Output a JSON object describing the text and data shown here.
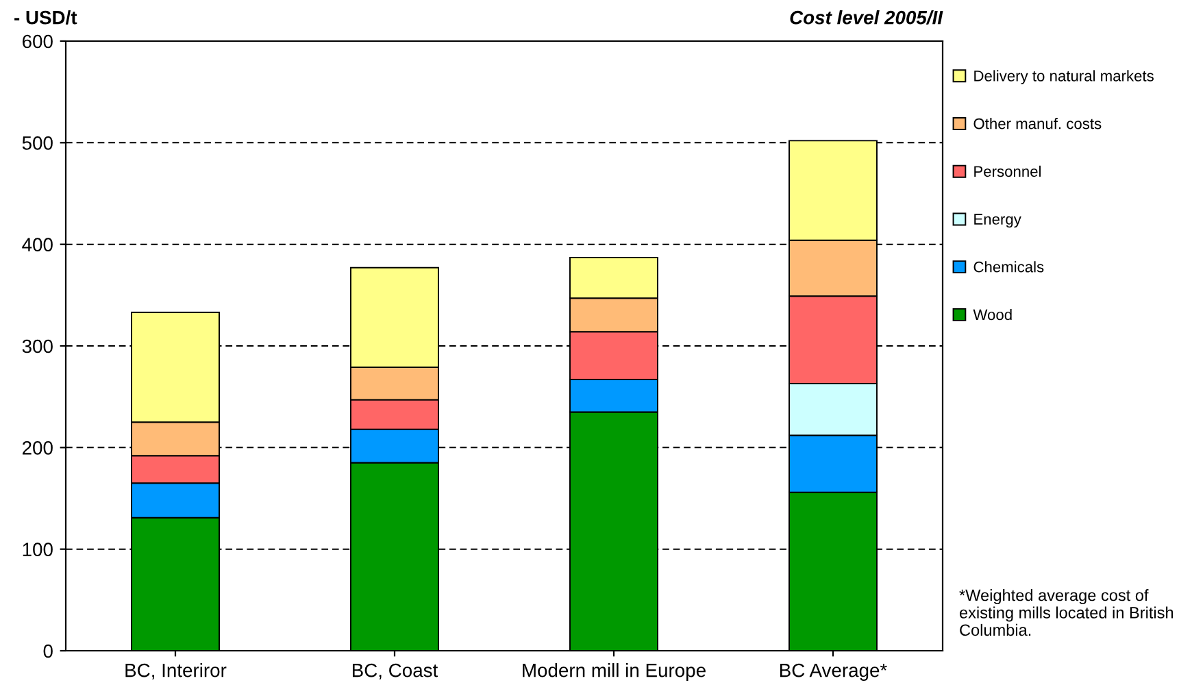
{
  "chart_data": {
    "type": "bar",
    "stacked": true,
    "ylabel": "- USD/t",
    "subtitle": "Cost level 2005/II",
    "categories": [
      "BC, Interiror",
      "BC, Coast",
      "Modern mill in Europe",
      "BC Average*"
    ],
    "series": [
      {
        "name": "Wood",
        "color": "#009900",
        "values": [
          131,
          185,
          235,
          156
        ]
      },
      {
        "name": "Chemicals",
        "color": "#0099ff",
        "values": [
          34,
          33,
          32,
          56
        ]
      },
      {
        "name": "Energy",
        "color": "#ccffff",
        "values": [
          null,
          null,
          null,
          51
        ]
      },
      {
        "name": "Personnel",
        "color": "#ff6666",
        "values": [
          27,
          29,
          47,
          86
        ]
      },
      {
        "name": "Other manuf. costs",
        "color": "#ffbb77",
        "values": [
          33,
          32,
          33,
          55
        ]
      },
      {
        "name": "Delivery to natural markets",
        "color": "#ffff88",
        "values": [
          108,
          98,
          40,
          98
        ]
      }
    ],
    "ylim": [
      0,
      600
    ],
    "yticks": [
      0,
      100,
      200,
      300,
      400,
      500,
      600
    ],
    "grid": "y",
    "legend": "top right",
    "annotations": [
      "*Weighted average cost of existing mills located in British Columbia."
    ]
  }
}
